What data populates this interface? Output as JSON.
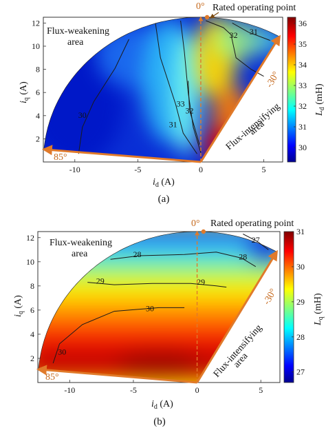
{
  "chart_data": [
    {
      "type": "heatmap",
      "caption": "(a)",
      "xlabel": "i",
      "xlabel_sub": "d",
      "xlabel_unit": " (A)",
      "ylabel": "i",
      "ylabel_sub": "q",
      "ylabel_unit": " (A)",
      "xlim": [
        -12.5,
        6.5
      ],
      "ylim": [
        0,
        12.5
      ],
      "xticks": [
        -10,
        -5,
        0,
        5
      ],
      "yticks": [
        2,
        4,
        6,
        8,
        10,
        12
      ],
      "xtick_labels": [
        "-10",
        "-5",
        "0",
        "5"
      ],
      "ytick_labels": [
        "2",
        "4",
        "6",
        "8",
        "10",
        "12"
      ],
      "colorbar": {
        "label": "L",
        "label_sub": "d",
        "label_unit": " (mH)",
        "min": 29.3,
        "max": 36.3,
        "ticks": [
          30,
          31,
          32,
          33,
          34,
          35,
          36
        ],
        "tick_labels": [
          "30",
          "31",
          "32",
          "33",
          "34",
          "35",
          "36"
        ]
      },
      "region_labels": [
        "Flux-weakening",
        "area",
        "Flux-intensifying",
        "area"
      ],
      "angle_labels": [
        "0°",
        "85°",
        "-30°"
      ],
      "rated_point_label": "Rated operating point",
      "rated_point": [
        0.5,
        12.5
      ],
      "current_limit": 12.5,
      "angle_range_deg": [
        -30,
        85
      ],
      "contour_labels": [
        {
          "text": "30",
          "x": -9.4,
          "y": 3.8
        },
        {
          "text": "31",
          "x": -2.2,
          "y": 3.0
        },
        {
          "text": "32",
          "x": -0.9,
          "y": 4.2
        },
        {
          "text": "33",
          "x": -1.6,
          "y": 4.8
        },
        {
          "text": "32",
          "x": 2.6,
          "y": 10.7
        },
        {
          "text": "31",
          "x": 4.2,
          "y": 11.0
        }
      ]
    },
    {
      "type": "heatmap",
      "caption": "(b)",
      "xlabel": "i",
      "xlabel_sub": "d",
      "xlabel_unit": " (A)",
      "ylabel": "i",
      "ylabel_sub": "q",
      "ylabel_unit": " (A)",
      "xlim": [
        -12.5,
        6.5
      ],
      "ylim": [
        0,
        12.5
      ],
      "xticks": [
        -10,
        -5,
        0,
        5
      ],
      "yticks": [
        2,
        4,
        6,
        8,
        10,
        12
      ],
      "xtick_labels": [
        "-10",
        "-5",
        "0",
        "5"
      ],
      "ytick_labels": [
        "2",
        "4",
        "6",
        "8",
        "10",
        "12"
      ],
      "colorbar": {
        "label": "L",
        "label_sub": "q",
        "label_unit": " (mH)",
        "min": 26.7,
        "max": 31.0,
        "ticks": [
          27,
          28,
          29,
          30,
          31
        ],
        "tick_labels": [
          "27",
          "28",
          "29",
          "30",
          "31"
        ]
      },
      "region_labels": [
        "Flux-weakening",
        "area",
        "Flux-intensifying",
        "area"
      ],
      "angle_labels": [
        "0°",
        "85°",
        "-30°"
      ],
      "rated_point_label": "Rated operating point",
      "rated_point": [
        0.5,
        12.5
      ],
      "current_limit": 12.5,
      "angle_range_deg": [
        -30,
        85
      ],
      "contour_labels": [
        {
          "text": "28",
          "x": -4.7,
          "y": 10.4
        },
        {
          "text": "28",
          "x": 3.6,
          "y": 10.2
        },
        {
          "text": "29",
          "x": -7.6,
          "y": 8.2
        },
        {
          "text": "29",
          "x": 0.3,
          "y": 8.1
        },
        {
          "text": "30",
          "x": -3.7,
          "y": 5.9
        },
        {
          "text": "30",
          "x": -10.6,
          "y": 2.3
        },
        {
          "text": "27",
          "x": 4.6,
          "y": 11.6
        }
      ]
    }
  ]
}
